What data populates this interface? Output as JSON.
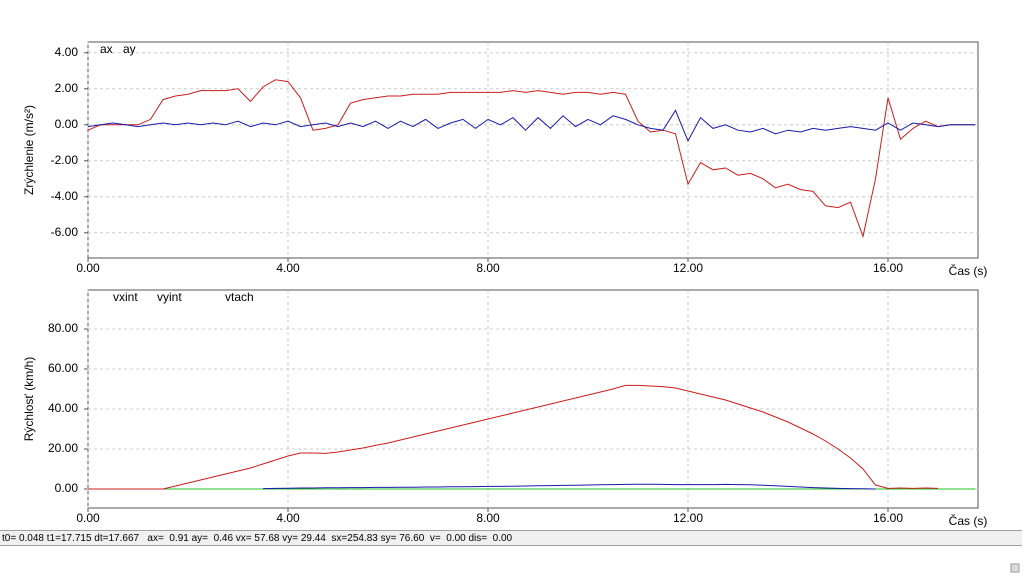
{
  "chart_data": [
    {
      "type": "line",
      "y_label": "Zrýchlenie  (m/s²)",
      "x_label": "Čas (s)",
      "x": [
        0,
        0.25,
        0.5,
        0.75,
        1,
        1.25,
        1.5,
        1.75,
        2,
        2.25,
        2.5,
        2.75,
        3,
        3.25,
        3.5,
        3.75,
        4,
        4.25,
        4.5,
        4.75,
        5,
        5.25,
        5.5,
        5.75,
        6,
        6.25,
        6.5,
        6.75,
        7,
        7.25,
        7.5,
        7.75,
        8,
        8.25,
        8.5,
        8.75,
        9,
        9.25,
        9.5,
        9.75,
        10,
        10.25,
        10.5,
        10.75,
        11,
        11.25,
        11.5,
        11.75,
        12,
        12.25,
        12.5,
        12.75,
        13,
        13.25,
        13.5,
        13.75,
        14,
        14.25,
        14.5,
        14.75,
        15,
        15.25,
        15.5,
        15.75,
        16,
        16.25,
        16.5,
        16.75,
        17,
        17.25,
        17.5,
        17.75
      ],
      "series": [
        {
          "name": "ax",
          "color": "#c81e1e",
          "values": [
            -0.3,
            0,
            0,
            0,
            0,
            0.3,
            1.4,
            1.6,
            1.7,
            1.9,
            1.9,
            1.9,
            2.0,
            1.3,
            2.1,
            2.5,
            2.4,
            1.5,
            -0.3,
            -0.2,
            0.0,
            1.2,
            1.4,
            1.5,
            1.6,
            1.6,
            1.7,
            1.7,
            1.7,
            1.8,
            1.8,
            1.8,
            1.8,
            1.8,
            1.9,
            1.8,
            1.9,
            1.8,
            1.7,
            1.8,
            1.8,
            1.7,
            1.8,
            1.7,
            0.2,
            -0.4,
            -0.3,
            -0.5,
            -3.3,
            -2.1,
            -2.5,
            -2.4,
            -2.8,
            -2.7,
            -3.0,
            -3.5,
            -3.3,
            -3.6,
            -3.7,
            -4.5,
            -4.6,
            -4.3,
            -6.2,
            -3.0,
            1.5,
            -0.8,
            -0.2,
            0.2,
            -0.1,
            0,
            0,
            0
          ]
        },
        {
          "name": "ay",
          "color": "#1a1aa8",
          "values": [
            -0.1,
            0,
            0.1,
            0,
            -0.1,
            0,
            0.1,
            0,
            0.1,
            0,
            0.1,
            0,
            0.2,
            -0.1,
            0.1,
            0,
            0.2,
            -0.1,
            0,
            0.1,
            -0.1,
            0.1,
            -0.1,
            0.2,
            -0.2,
            0.2,
            -0.1,
            0.3,
            -0.2,
            0.1,
            0.3,
            -0.2,
            0.3,
            0,
            0.4,
            -0.3,
            0.4,
            -0.2,
            0.5,
            -0.1,
            0.3,
            0,
            0.5,
            0.3,
            0,
            -0.2,
            -0.3,
            0.8,
            -0.9,
            0.4,
            -0.2,
            0,
            -0.3,
            -0.4,
            -0.2,
            -0.5,
            -0.3,
            -0.4,
            -0.2,
            -0.3,
            -0.2,
            -0.1,
            -0.2,
            -0.3,
            0.1,
            -0.3,
            0.1,
            0,
            -0.1,
            0,
            0,
            0
          ]
        }
      ],
      "xlim": [
        0,
        17.8
      ],
      "ylim": [
        -7.4,
        4.6
      ],
      "xticks": [
        {
          "value": 0,
          "label": "0.00"
        },
        {
          "value": 4,
          "label": "4.00"
        },
        {
          "value": 8,
          "label": "8.00"
        },
        {
          "value": 12,
          "label": "12.00"
        },
        {
          "value": 16,
          "label": "16.00"
        }
      ],
      "yticks": [
        {
          "value": 4,
          "label": "4.00"
        },
        {
          "value": 2,
          "label": "2.00"
        },
        {
          "value": 0,
          "label": "0.00"
        },
        {
          "value": -2,
          "label": "-2.00"
        },
        {
          "value": -4,
          "label": "-4.00"
        },
        {
          "value": -6,
          "label": "-6.00"
        }
      ],
      "grid": true
    },
    {
      "type": "line",
      "y_label": "Rýchlosť (km/h)",
      "x_label": "Čas (s)",
      "x": [
        0,
        0.25,
        0.5,
        0.75,
        1,
        1.25,
        1.5,
        1.75,
        2,
        2.25,
        2.5,
        2.75,
        3,
        3.25,
        3.5,
        3.75,
        4,
        4.25,
        4.5,
        4.75,
        5,
        5.25,
        5.5,
        5.75,
        6,
        6.25,
        6.5,
        6.75,
        7,
        7.25,
        7.5,
        7.75,
        8,
        8.25,
        8.5,
        8.75,
        9,
        9.25,
        9.5,
        9.75,
        10,
        10.25,
        10.5,
        10.75,
        11,
        11.25,
        11.5,
        11.75,
        12,
        12.25,
        12.5,
        12.75,
        13,
        13.25,
        13.5,
        13.75,
        14,
        14.25,
        14.5,
        14.75,
        15,
        15.25,
        15.5,
        15.75,
        16,
        16.25,
        16.5,
        16.75,
        17,
        17.25,
        17.5,
        17.75
      ],
      "series": [
        {
          "name": "vtach",
          "color": "#22c322",
          "values": [
            0,
            0,
            0,
            0,
            0,
            0,
            0,
            0,
            0,
            0,
            0,
            0,
            0,
            0,
            0,
            0,
            0,
            0,
            0,
            0,
            0,
            0,
            0,
            0,
            0,
            0,
            0,
            0,
            0,
            0,
            0,
            0,
            0,
            0,
            0,
            0,
            0,
            0,
            0,
            0,
            0,
            0,
            0,
            0,
            0,
            0,
            0,
            0,
            0,
            0,
            0,
            0,
            0,
            0,
            0,
            0,
            0,
            0,
            0,
            0,
            0,
            0,
            0,
            0,
            0,
            0,
            0,
            0,
            0,
            0,
            0,
            0
          ]
        },
        {
          "name": "vxint",
          "color": "#c81e1e",
          "values": [
            0,
            0,
            0,
            0,
            0,
            0,
            0,
            1.5,
            3,
            4.5,
            6,
            7.5,
            9,
            10.5,
            12.5,
            14.5,
            16.5,
            18,
            18,
            17.8,
            18.5,
            19.5,
            20.5,
            21.8,
            23,
            24.5,
            26,
            27.5,
            29,
            30.5,
            32,
            33.5,
            35,
            36.5,
            38,
            39.5,
            41,
            42.5,
            44,
            45.5,
            47,
            48.5,
            50,
            51.8,
            51.8,
            51.5,
            51.2,
            50.5,
            49,
            47.5,
            46,
            44.5,
            42.5,
            40.5,
            38.5,
            36,
            33.5,
            30.5,
            27.5,
            24,
            20,
            15.5,
            10,
            2,
            0.3,
            0.5,
            0.3,
            0.5,
            0.3,
            null,
            null,
            null
          ]
        },
        {
          "name": "vyint",
          "color": "#1a1aa8",
          "values": [
            null,
            null,
            null,
            null,
            null,
            null,
            null,
            null,
            null,
            null,
            null,
            null,
            null,
            null,
            0.2,
            0.3,
            0.4,
            0.5,
            0.5,
            0.6,
            0.6,
            0.7,
            0.7,
            0.8,
            0.8,
            0.9,
            0.9,
            1.0,
            1.0,
            1.1,
            1.1,
            1.2,
            1.3,
            1.3,
            1.4,
            1.5,
            1.6,
            1.7,
            1.8,
            1.9,
            2.0,
            2.1,
            2.2,
            2.3,
            2.4,
            2.4,
            2.3,
            2.2,
            2.2,
            2.2,
            2.2,
            2.3,
            2.2,
            2.1,
            1.9,
            1.6,
            1.3,
            1.0,
            0.7,
            0.5,
            0.3,
            0.2,
            0.1,
            0,
            null,
            null,
            null,
            null,
            null,
            null,
            null,
            null
          ]
        }
      ],
      "legend_order": [
        1,
        2,
        0
      ],
      "xlim": [
        0,
        17.8
      ],
      "ylim": [
        -9.5,
        99.5
      ],
      "xticks": [
        {
          "value": 0,
          "label": "0.00"
        },
        {
          "value": 4,
          "label": "4.00"
        },
        {
          "value": 8,
          "label": "8.00"
        },
        {
          "value": 12,
          "label": "12.00"
        },
        {
          "value": 16,
          "label": "16.00"
        }
      ],
      "yticks": [
        {
          "value": 80,
          "label": "80.00"
        },
        {
          "value": 60,
          "label": "60.00"
        },
        {
          "value": 40,
          "label": "40.00"
        },
        {
          "value": 20,
          "label": "20.00"
        },
        {
          "value": 0,
          "label": "0.00"
        }
      ],
      "grid": true
    }
  ],
  "status_bar": "t0= 0.048 t1=17.715 dt=17.667   ax=  0.91 ay=  0.46 vx= 57.68 vy= 29.44  sx=254.83 sy= 76.60  v=  0.00 dis=  0.00"
}
